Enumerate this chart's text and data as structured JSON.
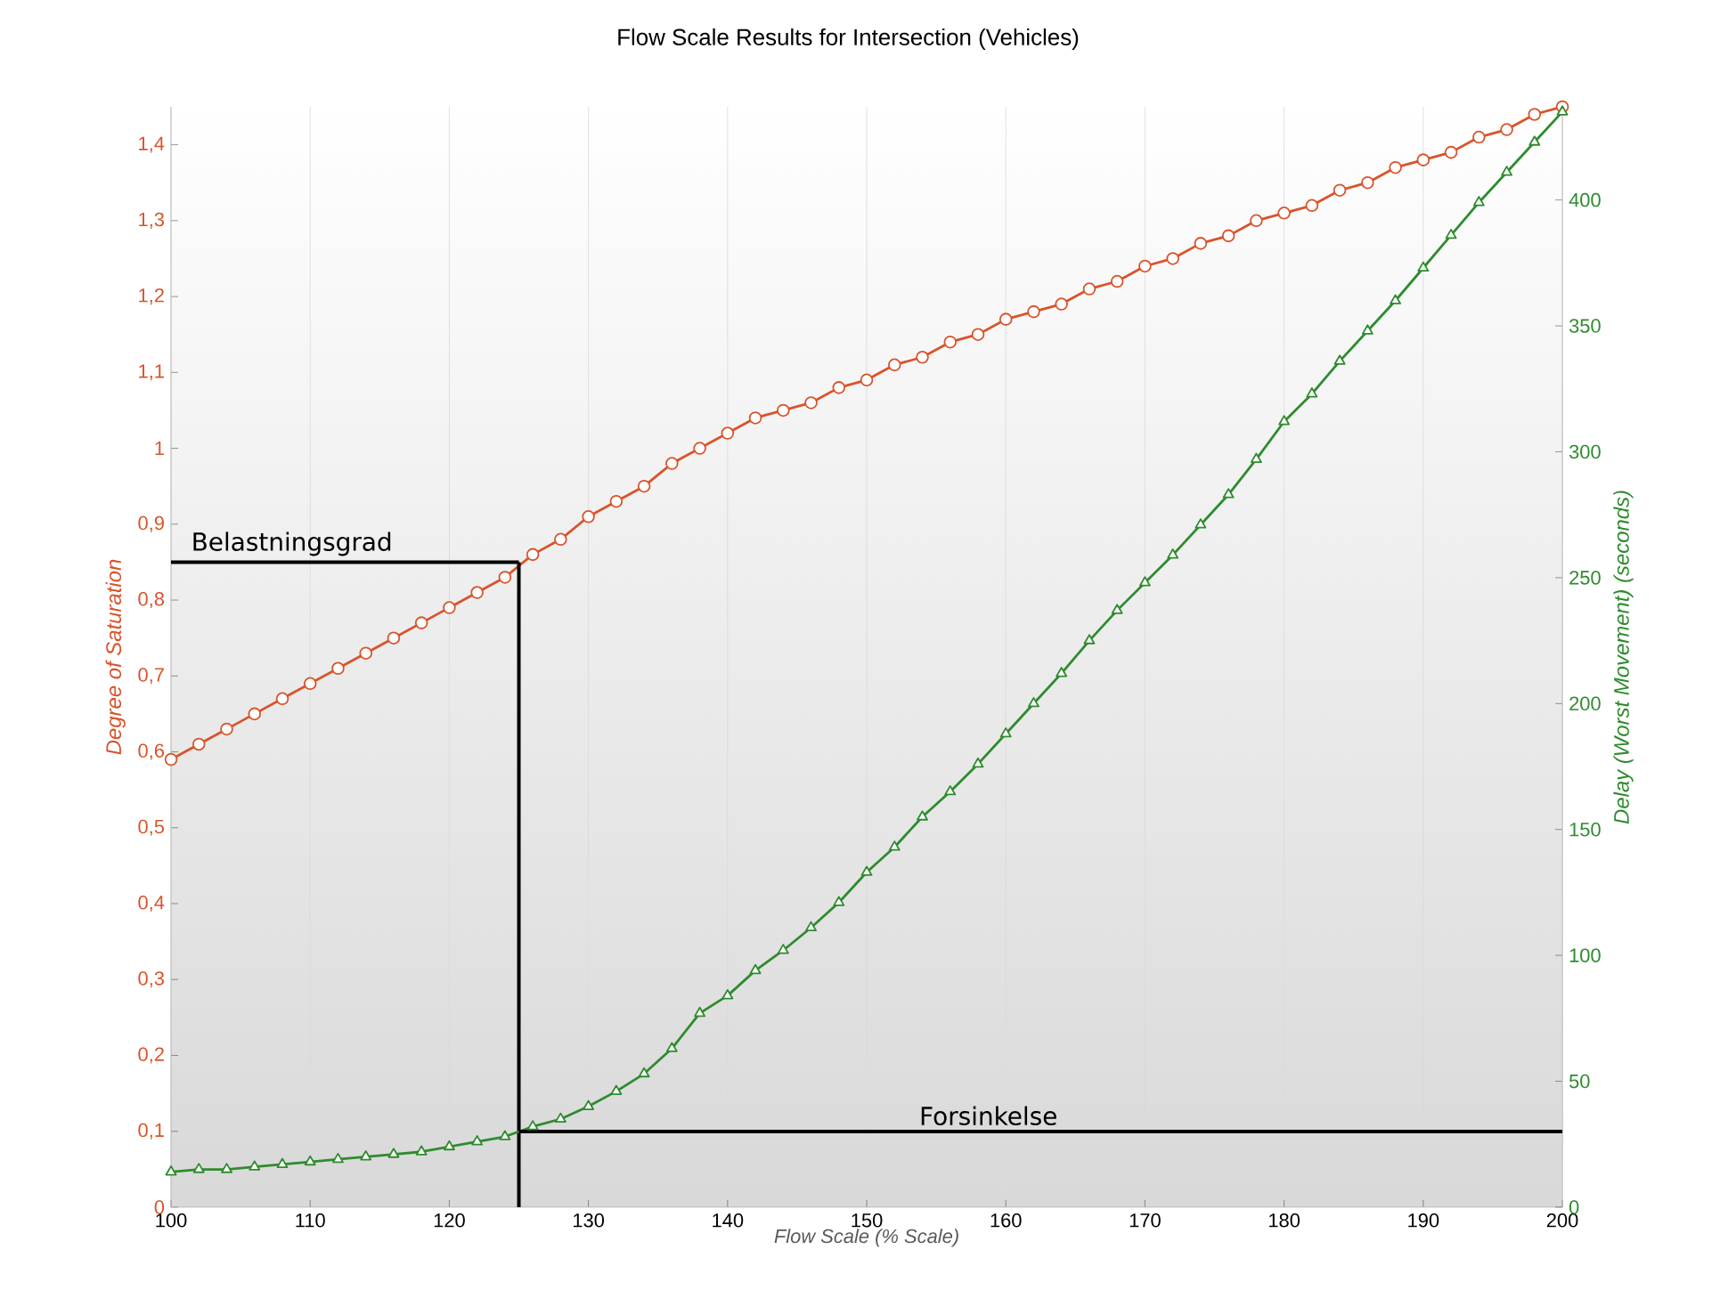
{
  "chart_data": {
    "type": "line",
    "title": "Flow Scale Results for Intersection (Vehicles)",
    "xlabel": "Flow Scale (% Scale)",
    "ylabel": "Degree of Saturation",
    "y2label": "Delay (Worst Movement) (seconds)",
    "x": [
      100,
      102,
      104,
      106,
      108,
      110,
      112,
      114,
      116,
      118,
      120,
      122,
      124,
      126,
      128,
      130,
      132,
      134,
      136,
      138,
      140,
      142,
      144,
      146,
      148,
      150,
      152,
      154,
      156,
      158,
      160,
      162,
      164,
      166,
      168,
      170,
      172,
      174,
      176,
      178,
      180,
      182,
      184,
      186,
      188,
      190,
      192,
      194,
      196,
      198,
      200
    ],
    "series": [
      {
        "color": "#d9532b",
        "marker": "circle",
        "values": [
          0.59,
          0.61,
          0.63,
          0.65,
          0.67,
          0.69,
          0.71,
          0.73,
          0.75,
          0.77,
          0.79,
          0.81,
          0.83,
          0.86,
          0.88,
          0.91,
          0.93,
          0.95,
          0.98,
          1.0,
          1.02,
          1.04,
          1.05,
          1.06,
          1.08,
          1.09,
          1.11,
          1.12,
          1.14,
          1.15,
          1.17,
          1.18,
          1.19,
          1.21,
          1.22,
          1.24,
          1.25,
          1.27,
          1.28,
          1.3,
          1.31,
          1.32,
          1.34,
          1.35,
          1.37,
          1.38,
          1.39,
          1.41,
          1.42,
          1.44,
          1.45
        ]
      },
      {
        "color": "#2e8b2e",
        "marker": "triangle",
        "axis": "y2",
        "values": [
          14,
          15,
          15,
          16,
          17,
          18,
          19,
          20,
          21,
          22,
          24,
          26,
          28,
          32,
          35,
          40,
          46,
          53,
          63,
          77,
          84,
          94,
          102,
          111,
          121,
          133,
          143,
          155,
          165,
          176,
          188,
          200,
          212,
          225,
          237,
          248,
          259,
          271,
          283,
          297,
          312,
          323,
          336,
          348,
          360,
          373,
          386,
          399,
          411,
          423,
          435
        ]
      }
    ],
    "xlim": [
      100,
      200
    ],
    "xticks": [
      100,
      110,
      120,
      130,
      140,
      150,
      160,
      170,
      180,
      190,
      200
    ],
    "ylim": [
      0,
      1.45
    ],
    "yticks": [
      0,
      {
        "value": 0.1,
        "label": "0,1"
      },
      {
        "value": 0.2,
        "label": "0,2"
      },
      {
        "value": 0.3,
        "label": "0,3"
      },
      {
        "value": 0.4,
        "label": "0,4"
      },
      {
        "value": 0.5,
        "label": "0,5"
      },
      {
        "value": 0.6,
        "label": "0,6"
      },
      {
        "value": 0.7,
        "label": "0,7"
      },
      {
        "value": 0.8,
        "label": "0,8"
      },
      {
        "value": 0.9,
        "label": "0,9"
      },
      1,
      {
        "value": 1.1,
        "label": "1,1"
      },
      {
        "value": 1.2,
        "label": "1,2"
      },
      {
        "value": 1.3,
        "label": "1,3"
      },
      {
        "value": 1.4,
        "label": "1,4"
      }
    ],
    "y2lim": [
      0,
      437
    ],
    "y2ticks": [
      0,
      50,
      100,
      150,
      200,
      250,
      300,
      350,
      400
    ],
    "ref_lines": [
      {
        "axis": "y",
        "value": 0.85,
        "label": "Belastningsgrad",
        "color": "#000000"
      },
      {
        "axis": "x",
        "value": 125,
        "label": null,
        "color": "#000000"
      },
      {
        "axis": "y2",
        "value": 30,
        "label": "Forsinkelse",
        "color": "#000000"
      }
    ],
    "grid": "x",
    "line_style": "solid"
  }
}
